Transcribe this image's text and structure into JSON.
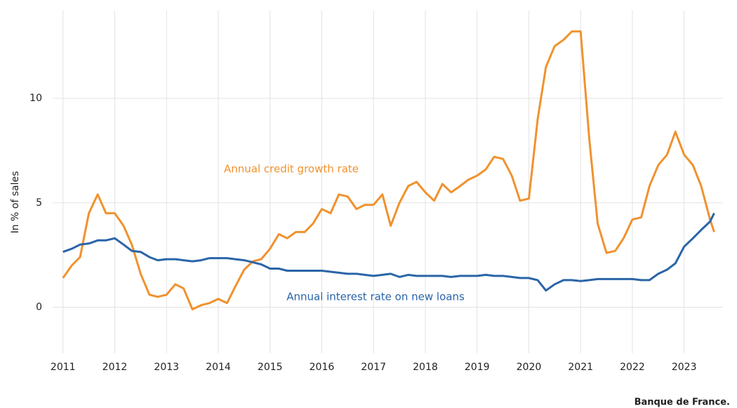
{
  "chart_data": {
    "type": "line",
    "y_label": "In % of sales",
    "source": "Banque de France.",
    "annotations": [
      "Annual credit growth rate",
      "Annual interest rate on new loans"
    ],
    "x": [
      2011.0,
      2011.17,
      2011.33,
      2011.5,
      2011.67,
      2011.83,
      2012.0,
      2012.17,
      2012.33,
      2012.5,
      2012.67,
      2012.83,
      2013.0,
      2013.17,
      2013.33,
      2013.5,
      2013.67,
      2013.83,
      2014.0,
      2014.17,
      2014.33,
      2014.5,
      2014.67,
      2014.83,
      2015.0,
      2015.17,
      2015.33,
      2015.5,
      2015.67,
      2015.83,
      2016.0,
      2016.17,
      2016.33,
      2016.5,
      2016.67,
      2016.83,
      2017.0,
      2017.17,
      2017.33,
      2017.5,
      2017.67,
      2017.83,
      2018.0,
      2018.17,
      2018.33,
      2018.5,
      2018.67,
      2018.83,
      2019.0,
      2019.17,
      2019.33,
      2019.5,
      2019.67,
      2019.83,
      2020.0,
      2020.17,
      2020.33,
      2020.5,
      2020.67,
      2020.83,
      2021.0,
      2021.17,
      2021.33,
      2021.5,
      2021.67,
      2021.83,
      2022.0,
      2022.17,
      2022.33,
      2022.5,
      2022.67,
      2022.83,
      2023.0,
      2023.17,
      2023.33,
      2023.5,
      2023.58
    ],
    "series": [
      {
        "name": "Annual credit growth rate",
        "color": "#f0922e",
        "values": [
          1.4,
          2.0,
          2.4,
          4.5,
          5.4,
          4.5,
          4.5,
          3.9,
          3.0,
          1.6,
          0.6,
          0.5,
          0.6,
          1.1,
          0.9,
          -0.1,
          0.1,
          0.2,
          0.4,
          0.2,
          1.0,
          1.8,
          2.2,
          2.3,
          2.8,
          3.5,
          3.3,
          3.6,
          3.6,
          4.0,
          4.7,
          4.5,
          5.4,
          5.3,
          4.7,
          4.9,
          4.9,
          5.4,
          3.9,
          5.0,
          5.8,
          6.0,
          5.5,
          5.1,
          5.9,
          5.5,
          5.8,
          6.1,
          6.3,
          6.6,
          7.2,
          7.1,
          6.3,
          5.1,
          5.2,
          9.0,
          11.5,
          12.5,
          12.8,
          13.2,
          13.2,
          8.0,
          4.0,
          2.6,
          2.7,
          3.3,
          4.2,
          4.3,
          5.8,
          6.8,
          7.3,
          8.4,
          7.3,
          6.8,
          5.8,
          4.2,
          3.6
        ]
      },
      {
        "name": "Annual interest rate on new loans",
        "color": "#2a65a8",
        "values": [
          2.65,
          2.8,
          3.0,
          3.05,
          3.2,
          3.2,
          3.3,
          3.0,
          2.7,
          2.65,
          2.4,
          2.25,
          2.3,
          2.3,
          2.25,
          2.2,
          2.25,
          2.35,
          2.35,
          2.35,
          2.3,
          2.25,
          2.15,
          2.05,
          1.85,
          1.85,
          1.75,
          1.75,
          1.75,
          1.75,
          1.75,
          1.7,
          1.65,
          1.6,
          1.6,
          1.55,
          1.5,
          1.55,
          1.6,
          1.45,
          1.55,
          1.5,
          1.5,
          1.5,
          1.5,
          1.45,
          1.5,
          1.5,
          1.5,
          1.55,
          1.5,
          1.5,
          1.45,
          1.4,
          1.4,
          1.3,
          0.8,
          1.1,
          1.3,
          1.3,
          1.25,
          1.3,
          1.35,
          1.35,
          1.35,
          1.35,
          1.35,
          1.3,
          1.3,
          1.6,
          1.8,
          2.1,
          2.9,
          3.3,
          3.7,
          4.1,
          4.5
        ]
      }
    ],
    "xlim": [
      2010.8,
      2023.75
    ],
    "xticks": [
      2011,
      2012,
      2013,
      2014,
      2015,
      2016,
      2017,
      2018,
      2019,
      2020,
      2021,
      2022,
      2023
    ],
    "ylim": [
      -2.2,
      14.2
    ],
    "yticks": [
      0,
      5,
      10
    ],
    "grid": true
  }
}
